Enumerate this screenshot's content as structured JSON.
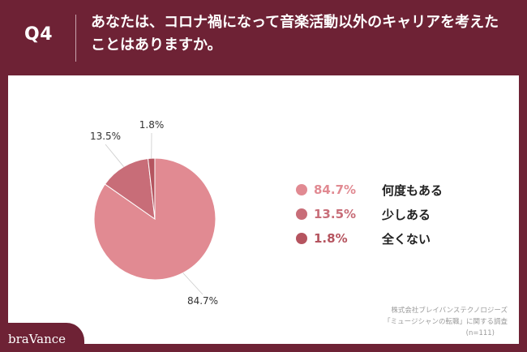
{
  "header": {
    "qnum": "Q4",
    "question": "あなたは、コロナ禍になって音楽活動以外のキャリアを考えたことはありますか。"
  },
  "chart_data": {
    "type": "pie",
    "slices": [
      {
        "label": "何度もある",
        "value": 84.7,
        "display": "84.7%",
        "color": "#e18a92"
      },
      {
        "label": "少しある",
        "value": 13.5,
        "display": "13.5%",
        "color": "#c86d78"
      },
      {
        "label": "全くない",
        "value": 1.8,
        "display": "1.8%",
        "color": "#b5545f"
      }
    ]
  },
  "legend": [
    {
      "pct": "84.7%",
      "label": "何度もある",
      "color": "#e18a92"
    },
    {
      "pct": "13.5%",
      "label": "少しある",
      "color": "#c86d78"
    },
    {
      "pct": "1.8%",
      "label": "全くない",
      "color": "#b5545f"
    }
  ],
  "source": {
    "line1": "株式会社ブレイバンステクノロジーズ",
    "line2": "「ミュージシャンの転職」に関する調査",
    "line3": "(n=111)"
  },
  "brand": "braVance",
  "colors": {
    "background": "#6e2235",
    "panel": "#ffffff"
  }
}
